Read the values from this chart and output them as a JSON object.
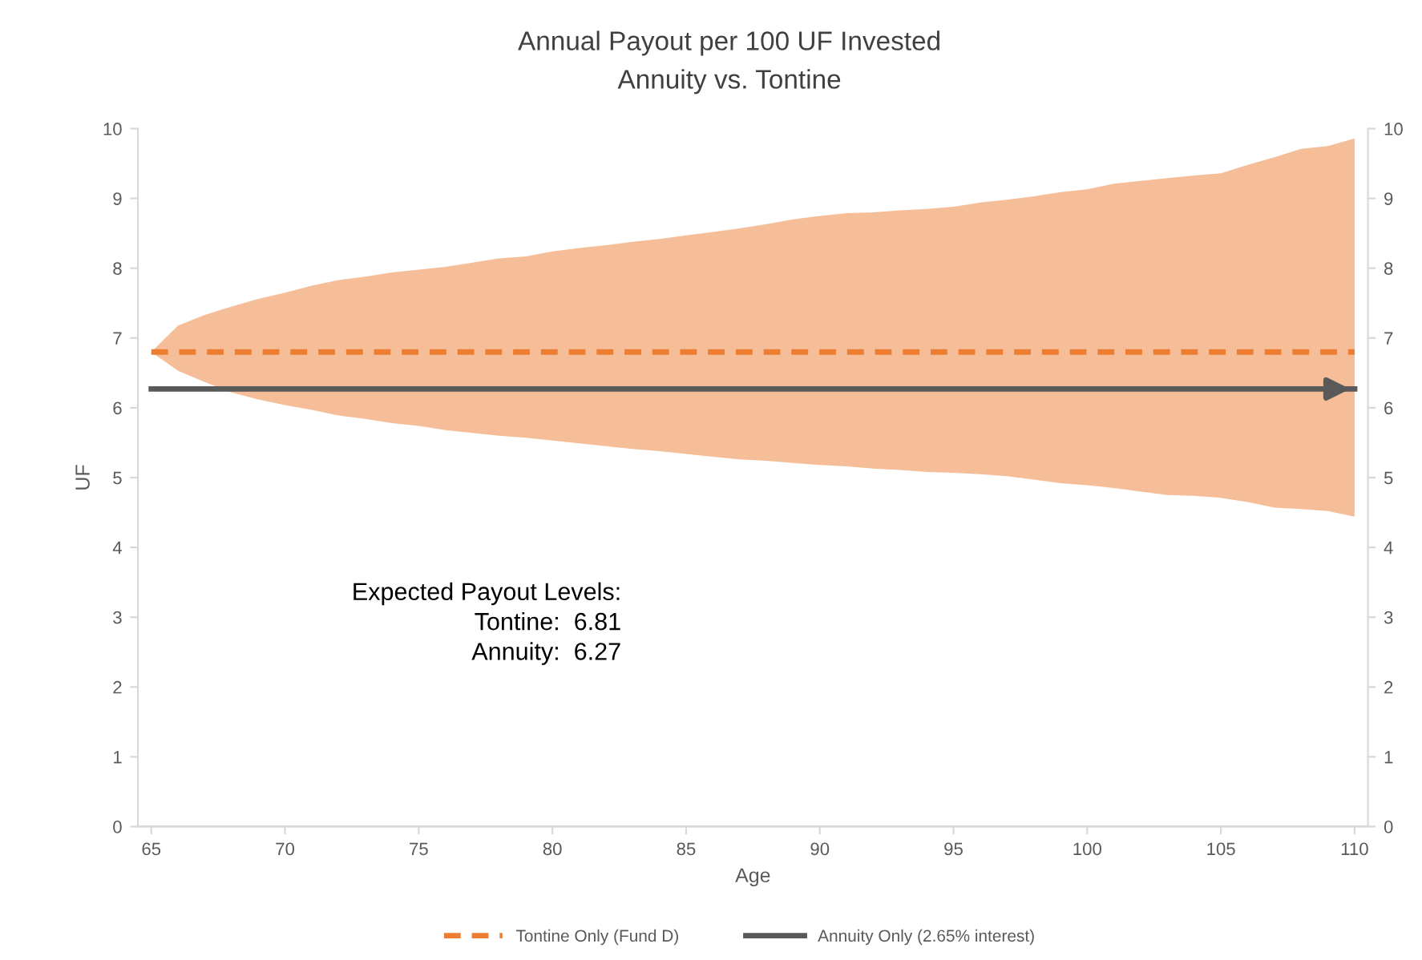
{
  "chart_data": {
    "type": "line",
    "title": "Annual Payout per 100 UF Invested",
    "subtitle": "Annuity vs. Tontine",
    "xlabel": "Age",
    "ylabel": "UF",
    "x": [
      65,
      66,
      67,
      68,
      69,
      70,
      71,
      72,
      73,
      74,
      75,
      76,
      77,
      78,
      79,
      80,
      81,
      82,
      83,
      84,
      85,
      86,
      87,
      88,
      89,
      90,
      91,
      92,
      93,
      94,
      95,
      96,
      97,
      98,
      99,
      100,
      101,
      102,
      103,
      104,
      105,
      106,
      107,
      108,
      109,
      110
    ],
    "series": [
      {
        "name": "Tontine Only (Fund D)",
        "color": "#ed7d31",
        "line_style": "dashed",
        "values": [
          6.8,
          6.8,
          6.8,
          6.8,
          6.8,
          6.8,
          6.8,
          6.8,
          6.8,
          6.8,
          6.8,
          6.8,
          6.8,
          6.8,
          6.8,
          6.8,
          6.8,
          6.8,
          6.8,
          6.8,
          6.8,
          6.8,
          6.8,
          6.8,
          6.8,
          6.8,
          6.8,
          6.8,
          6.8,
          6.8,
          6.8,
          6.8,
          6.8,
          6.8,
          6.8,
          6.8,
          6.8,
          6.8,
          6.8,
          6.8,
          6.8,
          6.8,
          6.8,
          6.8,
          6.8,
          6.8
        ],
        "lower": [
          6.8,
          6.53,
          6.37,
          6.22,
          6.12,
          6.04,
          5.97,
          5.89,
          5.84,
          5.78,
          5.74,
          5.68,
          5.64,
          5.6,
          5.57,
          5.53,
          5.49,
          5.45,
          5.41,
          5.38,
          5.34,
          5.3,
          5.26,
          5.24,
          5.21,
          5.18,
          5.16,
          5.13,
          5.11,
          5.08,
          5.07,
          5.05,
          5.02,
          4.97,
          4.92,
          4.89,
          4.85,
          4.8,
          4.75,
          4.74,
          4.71,
          4.65,
          4.57,
          4.55,
          4.52,
          4.44
        ],
        "upper": [
          6.8,
          7.18,
          7.33,
          7.45,
          7.56,
          7.65,
          7.75,
          7.83,
          7.88,
          7.94,
          7.98,
          8.02,
          8.08,
          8.14,
          8.17,
          8.24,
          8.29,
          8.33,
          8.38,
          8.42,
          8.47,
          8.52,
          8.57,
          8.63,
          8.7,
          8.75,
          8.79,
          8.8,
          8.83,
          8.85,
          8.88,
          8.94,
          8.98,
          9.03,
          9.09,
          9.13,
          9.21,
          9.25,
          9.29,
          9.33,
          9.36,
          9.48,
          9.59,
          9.71,
          9.75,
          9.86
        ]
      },
      {
        "name": "Annuity Only (2.65% interest)",
        "color": "#595959",
        "line_style": "solid",
        "x": [
          65,
          110
        ],
        "values": [
          6.27,
          6.27
        ]
      }
    ],
    "xlim": [
      64.5,
      110.5
    ],
    "xticks": [
      65,
      70,
      75,
      80,
      85,
      90,
      95,
      100,
      105,
      110
    ],
    "ylim": [
      0,
      10
    ],
    "yticks": [
      0,
      1,
      2,
      3,
      4,
      5,
      6,
      7,
      8,
      9,
      10
    ],
    "y2lim": [
      0,
      10
    ],
    "y2ticks": [
      0,
      1,
      2,
      3,
      4,
      5,
      6,
      7,
      8,
      9,
      10
    ],
    "annotations": [
      "Expected Payout Levels:\nTontine:  6.81\nAnnuity:  6.27"
    ],
    "grid": false,
    "legend": "bottom"
  }
}
